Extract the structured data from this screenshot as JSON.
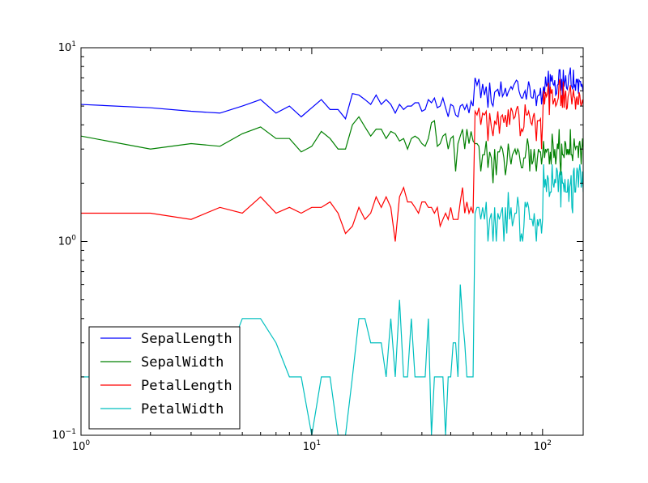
{
  "chart_data": {
    "type": "line",
    "xscale": "log",
    "yscale": "log",
    "xlim": [
      1,
      150
    ],
    "ylim": [
      0.1,
      10
    ],
    "x_ticks": [
      {
        "value": 1,
        "mantissa": "10",
        "exponent": "0"
      },
      {
        "value": 10,
        "mantissa": "10",
        "exponent": "1"
      },
      {
        "value": 100,
        "mantissa": "10",
        "exponent": "2"
      }
    ],
    "y_ticks": [
      {
        "value": 0.1,
        "mantissa": "10",
        "exponent": "−1"
      },
      {
        "value": 1,
        "mantissa": "10",
        "exponent": "0"
      },
      {
        "value": 10,
        "mantissa": "10",
        "exponent": "1"
      }
    ],
    "grid": false,
    "legend_position": "lower-left",
    "x_index_start": 1,
    "series": [
      {
        "name": "SepalLength",
        "color": "#0000ff",
        "values": [
          5.1,
          4.9,
          4.7,
          4.6,
          5.0,
          5.4,
          4.6,
          5.0,
          4.4,
          4.9,
          5.4,
          4.8,
          4.8,
          4.3,
          5.8,
          5.7,
          5.4,
          5.1,
          5.7,
          5.1,
          5.4,
          5.1,
          4.6,
          5.1,
          4.8,
          5.0,
          5.0,
          5.2,
          5.2,
          4.7,
          4.8,
          5.4,
          5.2,
          5.5,
          4.9,
          5.0,
          5.5,
          4.9,
          4.4,
          5.1,
          5.0,
          4.5,
          4.4,
          5.0,
          5.1,
          4.8,
          5.1,
          4.6,
          5.3,
          5.0,
          7.0,
          6.4,
          6.9,
          5.5,
          6.5,
          5.7,
          6.3,
          4.9,
          6.6,
          5.2,
          5.0,
          5.9,
          6.0,
          6.1,
          5.6,
          6.7,
          5.6,
          5.8,
          6.2,
          5.6,
          5.9,
          6.1,
          6.3,
          6.1,
          6.4,
          6.6,
          6.8,
          6.7,
          6.0,
          5.7,
          5.5,
          5.5,
          5.8,
          6.0,
          5.4,
          6.0,
          6.7,
          6.3,
          5.6,
          5.5,
          5.5,
          6.1,
          5.8,
          5.0,
          5.6,
          5.7,
          5.7,
          6.2,
          5.1,
          5.7,
          6.3,
          5.8,
          7.1,
          6.3,
          6.5,
          7.6,
          4.9,
          7.3,
          6.7,
          7.2,
          6.5,
          6.4,
          6.8,
          5.7,
          5.8,
          6.4,
          6.5,
          7.7,
          7.7,
          6.0,
          6.9,
          5.6,
          7.7,
          6.3,
          6.7,
          7.2,
          6.2,
          6.1,
          6.4,
          7.2,
          7.4,
          7.9,
          6.4,
          6.3,
          6.1,
          7.7,
          6.3,
          6.4,
          6.0,
          6.9,
          6.7,
          6.9,
          5.8,
          6.8,
          6.7,
          6.7,
          6.3,
          6.5,
          6.2,
          5.9
        ]
      },
      {
        "name": "SepalWidth",
        "color": "#008000",
        "values": [
          3.5,
          3.0,
          3.2,
          3.1,
          3.6,
          3.9,
          3.4,
          3.4,
          2.9,
          3.1,
          3.7,
          3.4,
          3.0,
          3.0,
          4.0,
          4.4,
          3.9,
          3.5,
          3.8,
          3.8,
          3.4,
          3.7,
          3.6,
          3.3,
          3.4,
          3.0,
          3.4,
          3.5,
          3.4,
          3.2,
          3.1,
          3.4,
          4.1,
          4.2,
          3.1,
          3.2,
          3.5,
          3.6,
          3.0,
          3.4,
          3.5,
          2.3,
          3.2,
          3.5,
          3.8,
          3.0,
          3.8,
          3.2,
          3.7,
          3.3,
          3.2,
          3.2,
          3.1,
          2.3,
          2.8,
          2.8,
          3.3,
          2.4,
          2.9,
          2.7,
          2.0,
          3.0,
          2.2,
          2.9,
          2.9,
          3.1,
          3.0,
          2.7,
          2.2,
          2.5,
          3.2,
          2.8,
          2.5,
          2.8,
          2.9,
          3.0,
          2.8,
          3.0,
          2.9,
          2.6,
          2.4,
          2.4,
          2.7,
          2.7,
          3.0,
          3.4,
          3.1,
          2.3,
          3.0,
          2.5,
          2.6,
          3.0,
          2.6,
          2.3,
          2.7,
          3.0,
          2.9,
          2.9,
          2.5,
          2.8,
          3.3,
          2.7,
          3.0,
          2.9,
          3.0,
          3.0,
          2.5,
          2.9,
          2.5,
          3.6,
          3.2,
          2.7,
          3.0,
          2.5,
          2.8,
          3.2,
          3.0,
          3.8,
          2.6,
          2.2,
          3.2,
          2.8,
          2.8,
          2.7,
          3.3,
          3.2,
          2.8,
          3.0,
          2.8,
          3.0,
          2.8,
          3.8,
          2.8,
          2.8,
          2.6,
          3.0,
          3.4,
          3.1,
          3.0,
          3.1,
          3.1,
          3.1,
          2.7,
          3.2,
          3.3,
          3.0,
          2.5,
          3.0,
          3.4,
          3.0
        ]
      },
      {
        "name": "PetalLength",
        "color": "#ff0000",
        "values": [
          1.4,
          1.4,
          1.3,
          1.5,
          1.4,
          1.7,
          1.4,
          1.5,
          1.4,
          1.5,
          1.5,
          1.6,
          1.4,
          1.1,
          1.2,
          1.5,
          1.3,
          1.4,
          1.7,
          1.5,
          1.7,
          1.5,
          1.0,
          1.7,
          1.9,
          1.6,
          1.6,
          1.5,
          1.4,
          1.6,
          1.6,
          1.5,
          1.5,
          1.4,
          1.5,
          1.2,
          1.3,
          1.4,
          1.3,
          1.5,
          1.3,
          1.3,
          1.3,
          1.6,
          1.9,
          1.4,
          1.6,
          1.4,
          1.5,
          1.4,
          4.7,
          4.5,
          4.9,
          4.0,
          4.6,
          4.5,
          4.7,
          3.3,
          4.6,
          3.9,
          3.5,
          4.2,
          4.0,
          4.7,
          3.6,
          4.4,
          4.5,
          4.1,
          4.5,
          3.9,
          4.8,
          4.0,
          4.9,
          4.7,
          4.3,
          4.4,
          4.8,
          5.0,
          4.5,
          3.5,
          3.8,
          3.7,
          3.9,
          5.1,
          4.5,
          4.5,
          4.7,
          4.4,
          4.1,
          4.0,
          4.4,
          4.6,
          4.0,
          3.3,
          4.2,
          4.2,
          4.2,
          4.3,
          3.0,
          4.1,
          6.0,
          5.1,
          5.9,
          5.6,
          5.8,
          6.6,
          4.5,
          6.3,
          5.8,
          6.1,
          5.1,
          5.3,
          5.5,
          5.0,
          5.1,
          5.3,
          5.5,
          6.7,
          6.9,
          5.0,
          5.7,
          4.9,
          6.7,
          4.9,
          5.7,
          6.0,
          4.8,
          4.9,
          5.6,
          5.8,
          6.1,
          6.4,
          5.6,
          5.1,
          5.6,
          6.1,
          5.6,
          5.5,
          4.8,
          5.4,
          5.6,
          5.1,
          5.1,
          5.9,
          5.7,
          5.2,
          5.0,
          5.2,
          5.4,
          5.1
        ]
      },
      {
        "name": "PetalWidth",
        "color": "#00bfbf",
        "values": [
          0.2,
          0.2,
          0.2,
          0.2,
          0.4,
          0.4,
          0.3,
          0.2,
          0.2,
          0.1,
          0.2,
          0.2,
          0.1,
          0.1,
          0.2,
          0.4,
          0.4,
          0.3,
          0.3,
          0.3,
          0.2,
          0.4,
          0.2,
          0.5,
          0.2,
          0.2,
          0.4,
          0.2,
          0.2,
          0.2,
          0.2,
          0.4,
          0.1,
          0.2,
          0.2,
          0.2,
          0.2,
          0.1,
          0.2,
          0.2,
          0.3,
          0.3,
          0.2,
          0.6,
          0.4,
          0.3,
          0.2,
          0.2,
          0.2,
          0.2,
          1.4,
          1.5,
          1.5,
          1.3,
          1.5,
          1.3,
          1.6,
          1.0,
          1.3,
          1.4,
          1.0,
          1.5,
          1.0,
          1.4,
          1.3,
          1.4,
          1.5,
          1.0,
          1.5,
          1.1,
          1.8,
          1.3,
          1.5,
          1.2,
          1.3,
          1.4,
          1.4,
          1.7,
          1.5,
          1.0,
          1.1,
          1.0,
          1.2,
          1.6,
          1.5,
          1.6,
          1.5,
          1.3,
          1.3,
          1.3,
          1.2,
          1.4,
          1.2,
          1.0,
          1.3,
          1.2,
          1.3,
          1.3,
          1.1,
          1.3,
          2.5,
          1.9,
          2.1,
          1.8,
          2.2,
          2.1,
          1.7,
          1.8,
          1.8,
          2.5,
          2.0,
          1.9,
          2.1,
          2.0,
          2.4,
          2.3,
          1.8,
          2.2,
          2.3,
          1.5,
          2.3,
          2.0,
          2.0,
          1.8,
          2.1,
          1.8,
          1.8,
          1.8,
          2.1,
          1.6,
          1.9,
          2.0,
          2.2,
          1.5,
          1.4,
          2.3,
          2.4,
          1.8,
          1.8,
          2.1,
          2.4,
          2.3,
          1.9,
          2.3,
          2.5,
          2.3,
          1.9,
          2.0,
          2.3,
          1.8
        ]
      }
    ]
  }
}
